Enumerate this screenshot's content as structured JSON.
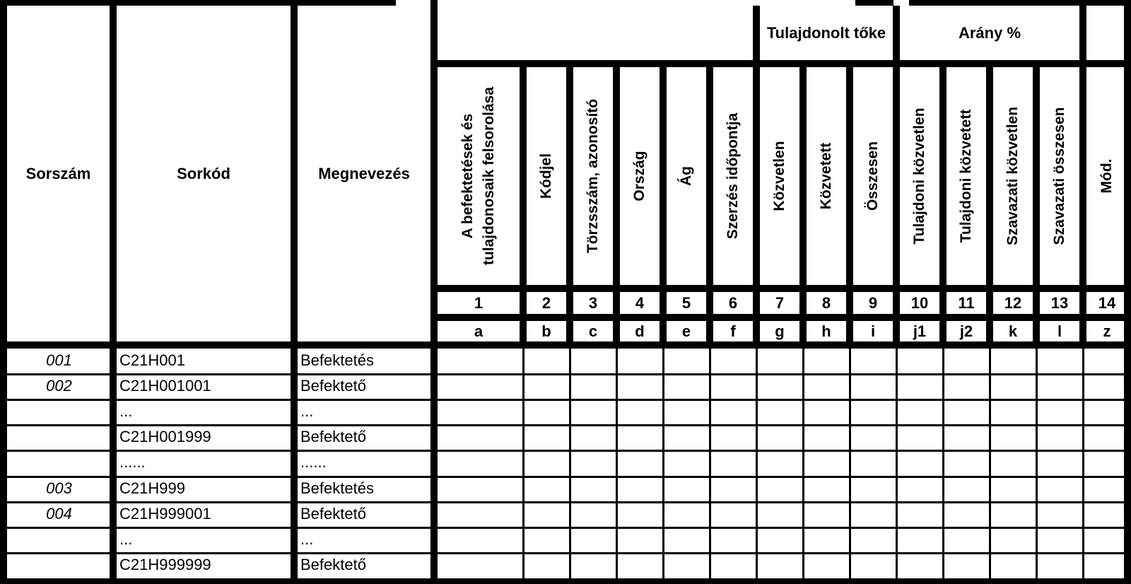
{
  "header": {
    "sorszam": "Sorszám",
    "sorkod": "Sorkód",
    "megnevezes": "Megnevezés",
    "group_tulajdonolt": "Tulajdonolt tőke",
    "group_arany": "Arány %"
  },
  "columns": [
    {
      "title": "A befektetések és tulajdonosaik felsorolása",
      "num": "1",
      "code": "a"
    },
    {
      "title": "Kódjel",
      "num": "2",
      "code": "b"
    },
    {
      "title": "Törzsszám, azonosító",
      "num": "3",
      "code": "c"
    },
    {
      "title": "Ország",
      "num": "4",
      "code": "d"
    },
    {
      "title": "Ág",
      "num": "5",
      "code": "e"
    },
    {
      "title": "Szerzés időpontja",
      "num": "6",
      "code": "f"
    },
    {
      "title": "Közvetlen",
      "num": "7",
      "code": "g"
    },
    {
      "title": "Közvetett",
      "num": "8",
      "code": "h"
    },
    {
      "title": "Összesen",
      "num": "9",
      "code": "i"
    },
    {
      "title": "Tulajdoni közvetlen",
      "num": "10",
      "code": "j1"
    },
    {
      "title": "Tulajdoni közvetett",
      "num": "11",
      "code": "j2"
    },
    {
      "title": "Szavazati közvetlen",
      "num": "12",
      "code": "k"
    },
    {
      "title": "Szavazati összesen",
      "num": "13",
      "code": "l"
    },
    {
      "title": "Mód.",
      "num": "14",
      "code": "z"
    }
  ],
  "rows": [
    {
      "sorszam": "001",
      "sorkod": "C21H001",
      "megnevezes": "Befektetés"
    },
    {
      "sorszam": "002",
      "sorkod": "C21H001001",
      "megnevezes": "Befektető"
    },
    {
      "sorszam": "",
      "sorkod": "...",
      "megnevezes": "..."
    },
    {
      "sorszam": "",
      "sorkod": "C21H001999",
      "megnevezes": "Befektető"
    },
    {
      "sorszam": "",
      "sorkod": "......",
      "megnevezes": "......"
    },
    {
      "sorszam": "003",
      "sorkod": "C21H999",
      "megnevezes": "Befektetés"
    },
    {
      "sorszam": "004",
      "sorkod": "C21H999001",
      "megnevezes": "Befektető"
    },
    {
      "sorszam": "",
      "sorkod": "...",
      "megnevezes": "..."
    },
    {
      "sorszam": "",
      "sorkod": "C21H999999",
      "megnevezes": "Befektető"
    }
  ]
}
